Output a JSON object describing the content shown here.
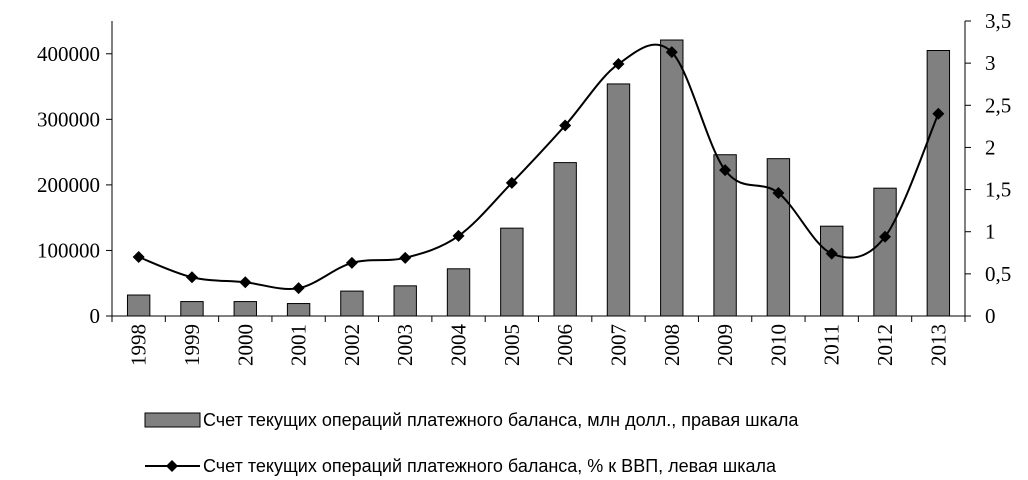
{
  "chart_data": {
    "type": "bar_line",
    "categories": [
      "1998",
      "1999",
      "2000",
      "2001",
      "2002",
      "2003",
      "2004",
      "2005",
      "2006",
      "2007",
      "2008",
      "2009",
      "2010",
      "2011",
      "2012",
      "2013"
    ],
    "series": [
      {
        "name": "Счет текущих операций платежного баланса, млн долл., правая шкала",
        "type": "bar",
        "color": "#808080",
        "values": [
          32000,
          22000,
          22000,
          19000,
          38000,
          46000,
          72000,
          134000,
          234000,
          354000,
          421000,
          246000,
          240000,
          137000,
          195000,
          405000
        ]
      },
      {
        "name": "Счет текущих операций платежного баланса, % к ВВП, левая шкала",
        "type": "line",
        "axis": "y2",
        "color": "#000000",
        "values": [
          0.7,
          0.46,
          0.4,
          0.33,
          0.63,
          0.69,
          0.95,
          1.58,
          2.26,
          2.99,
          3.13,
          1.73,
          1.46,
          0.74,
          0.94,
          2.4
        ]
      }
    ],
    "ylim": [
      0,
      450000
    ],
    "yticks": [
      0,
      100000,
      200000,
      300000,
      400000
    ],
    "y2lim": [
      0,
      3.5
    ],
    "y2ticks": [
      0,
      {
        "value": 0.5,
        "label": "0,5"
      },
      1,
      {
        "value": 1.5,
        "label": "1,5"
      },
      2,
      {
        "value": 2.5,
        "label": "2,5"
      },
      3,
      {
        "value": 3.5,
        "label": "3,5"
      }
    ],
    "grid": false,
    "legend": "bottom"
  }
}
